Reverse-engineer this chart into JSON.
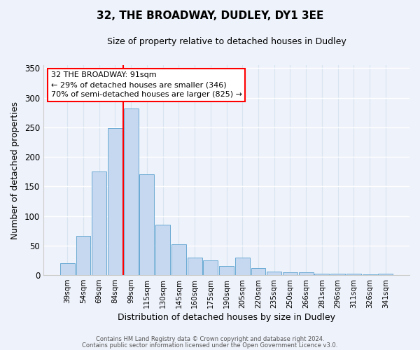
{
  "title1": "32, THE BROADWAY, DUDLEY, DY1 3EE",
  "title2": "Size of property relative to detached houses in Dudley",
  "xlabel": "Distribution of detached houses by size in Dudley",
  "ylabel": "Number of detached properties",
  "bar_color": "#c5d8f0",
  "bar_edge_color": "#6aaad4",
  "background_color": "#eef2fa",
  "grid_color": "#d8e4f0",
  "categories": [
    "39sqm",
    "54sqm",
    "69sqm",
    "84sqm",
    "99sqm",
    "115sqm",
    "130sqm",
    "145sqm",
    "160sqm",
    "175sqm",
    "190sqm",
    "205sqm",
    "220sqm",
    "235sqm",
    "250sqm",
    "266sqm",
    "281sqm",
    "296sqm",
    "311sqm",
    "326sqm",
    "341sqm"
  ],
  "values": [
    20,
    66,
    175,
    249,
    282,
    170,
    85,
    52,
    30,
    25,
    15,
    30,
    12,
    6,
    5,
    5,
    2,
    2,
    2,
    1,
    2
  ],
  "ylim": [
    0,
    355
  ],
  "yticks": [
    0,
    50,
    100,
    150,
    200,
    250,
    300,
    350
  ],
  "red_line_x": 3.5,
  "annotation_title": "32 THE BROADWAY: 91sqm",
  "annotation_line1": "← 29% of detached houses are smaller (346)",
  "annotation_line2": "70% of semi-detached houses are larger (825) →",
  "footer1": "Contains HM Land Registry data © Crown copyright and database right 2024.",
  "footer2": "Contains public sector information licensed under the Open Government Licence v3.0."
}
